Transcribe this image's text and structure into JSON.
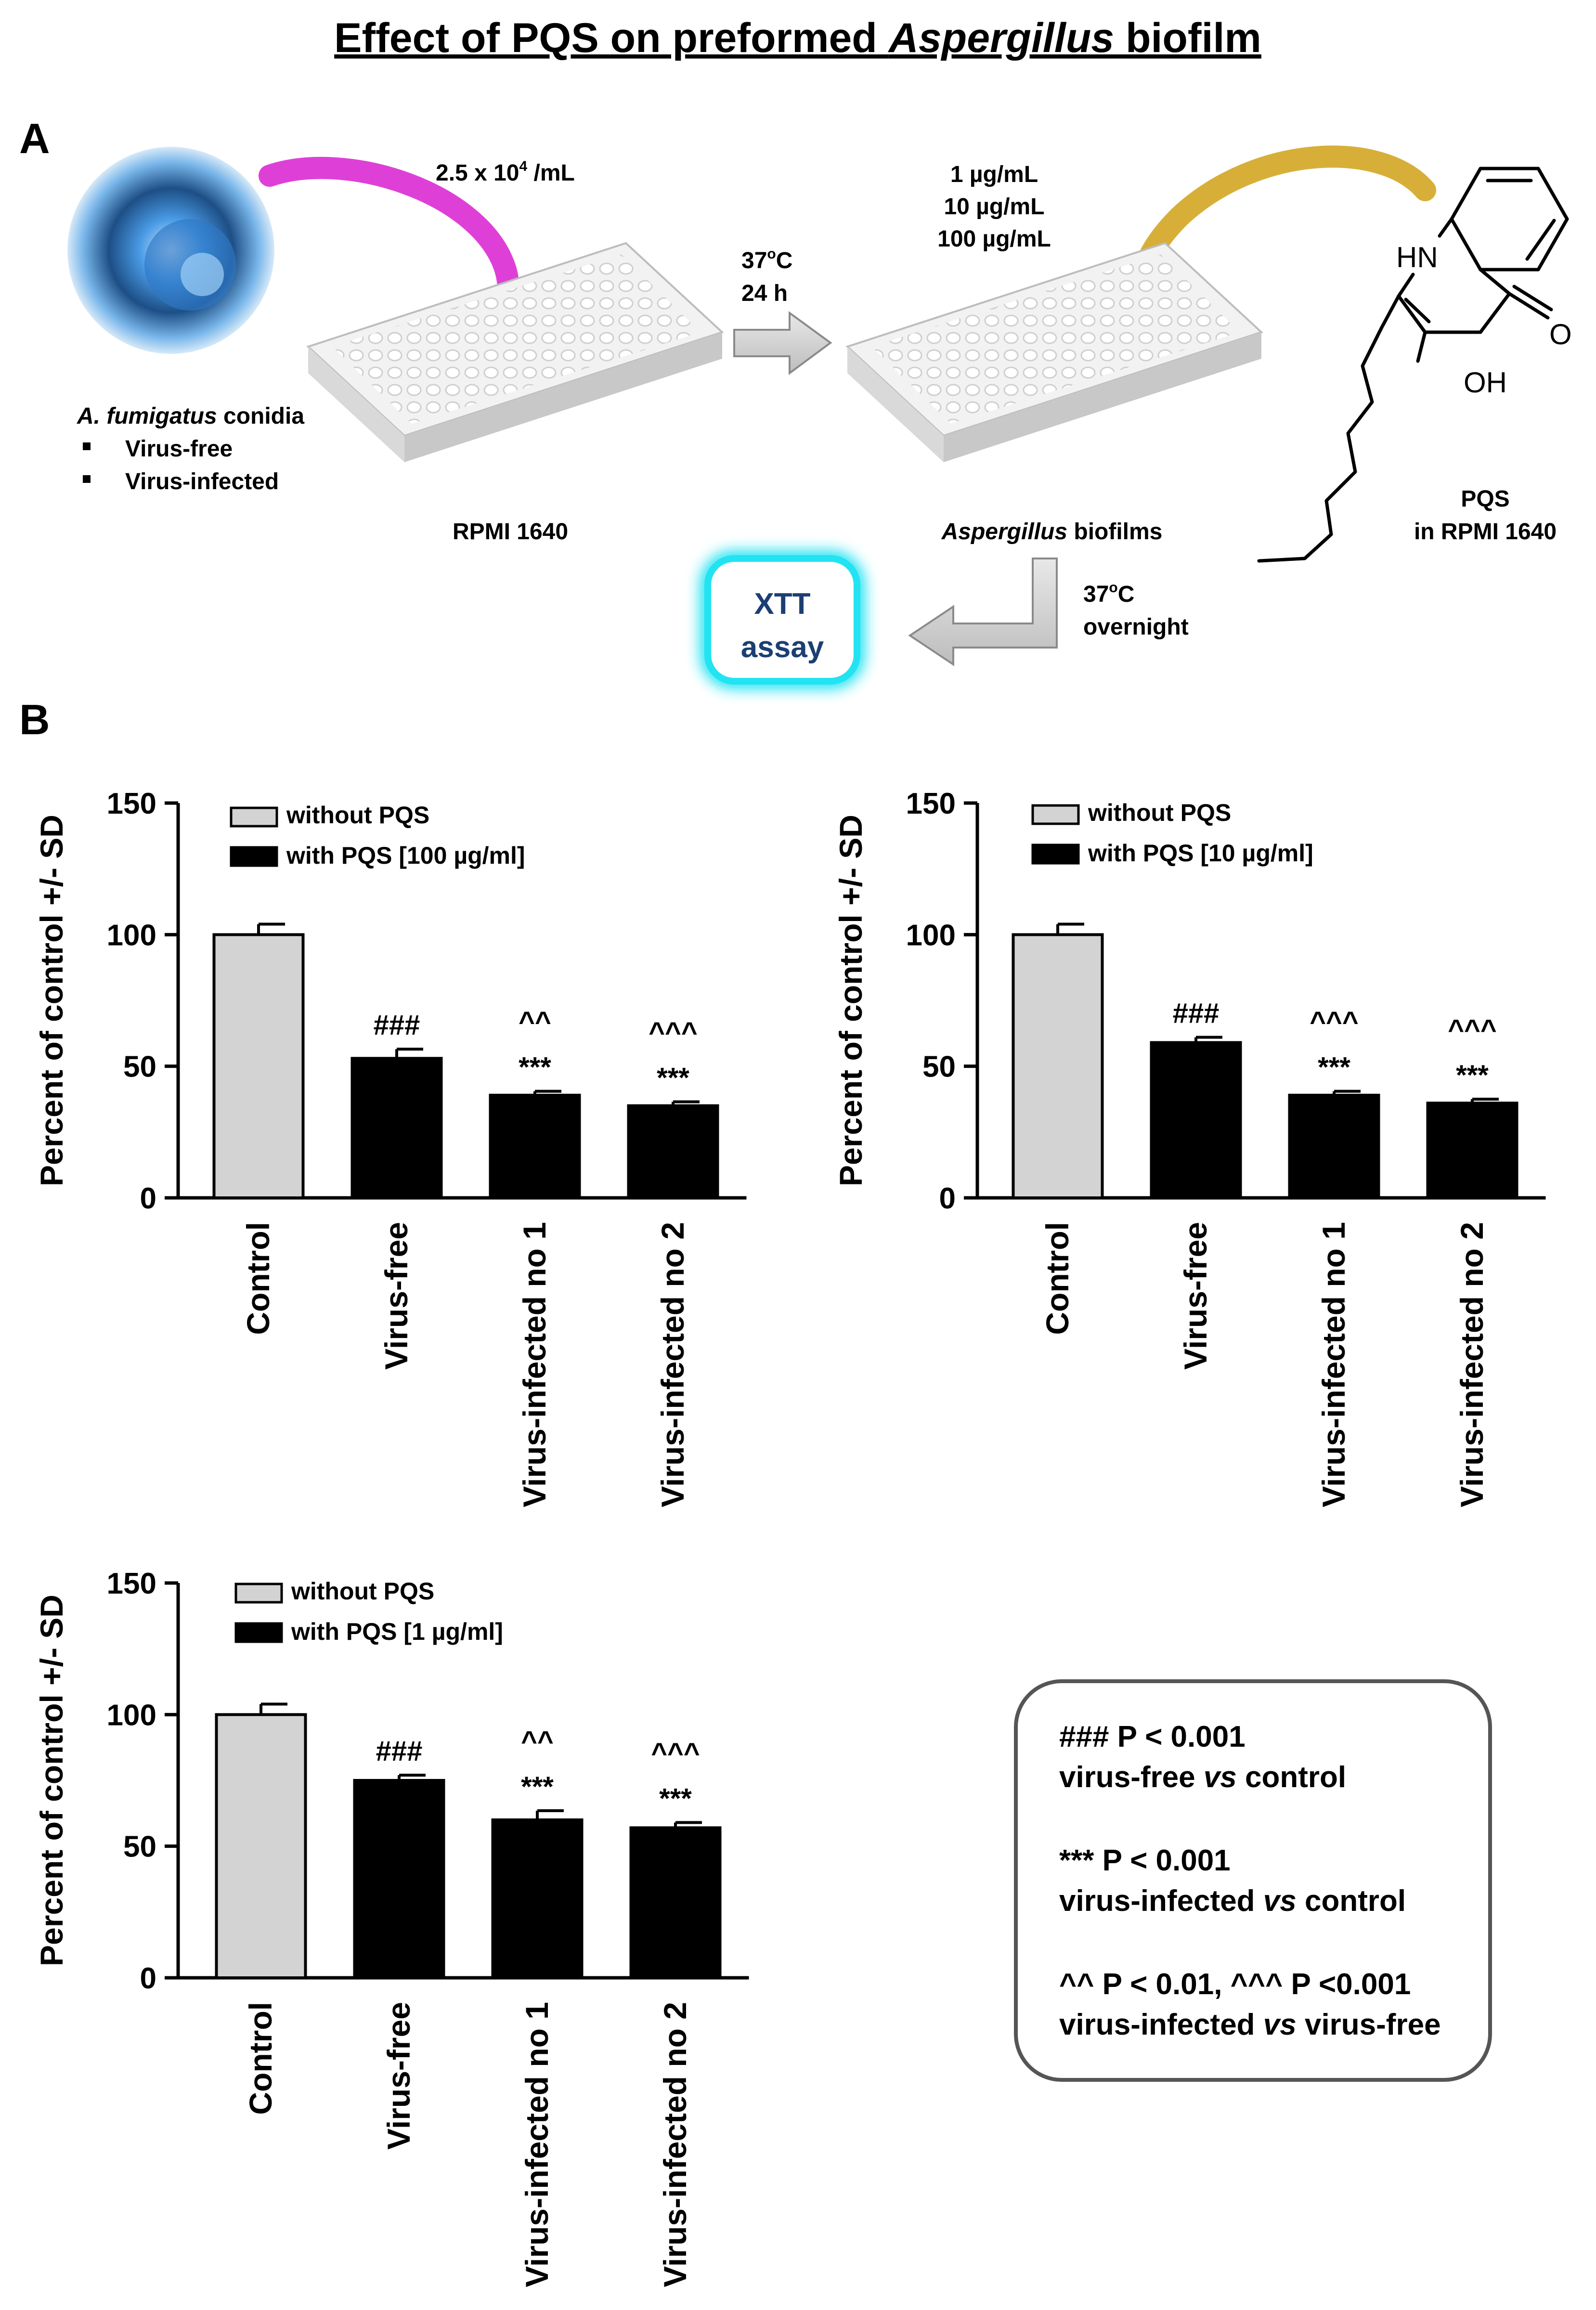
{
  "page": {
    "title_pre": "Effect of PQS on preformed ",
    "title_em": "Aspergillus",
    "title_post": " biofilm"
  },
  "panelA": {
    "label": "A",
    "conc": "2.5 x 10",
    "conc_exp": "4",
    "conc_unit": " /mL",
    "conidia_title_em": "A. fumigatus",
    "conidia_title_rest": " conidia",
    "conidia_items": [
      "Virus-free",
      "Virus-infected"
    ],
    "plate1_label": "RPMI 1640",
    "step1": [
      "37",
      "o",
      "C",
      "24 h"
    ],
    "doses": [
      "1 µg/mL",
      "10 µg/mL",
      "100 µg/mL"
    ],
    "plate2_label_em": "Aspergillus",
    "plate2_label_rest": " biofilms",
    "mol_hn": "HN",
    "mol_o": "O",
    "mol_oh": "OH",
    "pqs_label": [
      "PQS",
      "in RPMI 1640"
    ],
    "step2": [
      "37",
      "o",
      "C",
      "overnight"
    ],
    "xtt": [
      "XTT",
      "assay"
    ],
    "colors": {
      "magenta": "#d81fd0",
      "gold": "#d3a622",
      "xtt_glow": "#22e3f2",
      "xtt_text": "#1c3f73",
      "conidia": "#3f8fd8"
    }
  },
  "panelB": {
    "label": "B"
  },
  "chart_data": [
    {
      "type": "bar",
      "ylabel": "Percent of control +/- SD",
      "ylim": [
        0,
        150
      ],
      "yticks": [
        0,
        50,
        100,
        150
      ],
      "categories": [
        "Control",
        "Virus-free",
        "Virus-infected no 1",
        "Virus-infected no 2"
      ],
      "values": [
        100,
        53,
        39,
        35
      ],
      "errors": [
        4,
        3.5,
        1.5,
        1.5
      ],
      "legend": [
        "without PQS",
        "with PQS [100 µg/ml]"
      ],
      "annotations": [
        [],
        [
          "###"
        ],
        [
          "^^",
          "***"
        ],
        [
          "^^^",
          "***"
        ]
      ],
      "colors": [
        "#d3d3d3",
        "#000000",
        "#000000",
        "#000000"
      ]
    },
    {
      "type": "bar",
      "ylabel": "Percent of control +/- SD",
      "ylim": [
        0,
        150
      ],
      "yticks": [
        0,
        50,
        100,
        150
      ],
      "categories": [
        "Control",
        "Virus-free",
        "Virus-infected no 1",
        "Virus-infected no 2"
      ],
      "values": [
        100,
        59,
        39,
        36
      ],
      "errors": [
        4,
        2,
        1.5,
        1.5
      ],
      "legend": [
        "without PQS",
        "with PQS [10 µg/ml]"
      ],
      "annotations": [
        [],
        [
          "###"
        ],
        [
          "^^^",
          "***"
        ],
        [
          "^^^",
          "***"
        ]
      ],
      "colors": [
        "#d3d3d3",
        "#000000",
        "#000000",
        "#000000"
      ]
    },
    {
      "type": "bar",
      "ylabel": "Percent of control +/- SD",
      "ylim": [
        0,
        150
      ],
      "yticks": [
        0,
        50,
        100,
        150
      ],
      "categories": [
        "Control",
        "Virus-free",
        "Virus-infected no 1",
        "Virus-infected no 2"
      ],
      "values": [
        100,
        75,
        60,
        57
      ],
      "errors": [
        4,
        2,
        3.5,
        2
      ],
      "legend": [
        "without PQS",
        "with PQS [1 µg/ml]"
      ],
      "annotations": [
        [],
        [
          "###"
        ],
        [
          "^^",
          "***"
        ],
        [
          "^^^",
          "***"
        ]
      ],
      "colors": [
        "#d3d3d3",
        "#000000",
        "#000000",
        "#000000"
      ]
    }
  ],
  "stats_box": {
    "lines": [
      [
        "### P < 0.001"
      ],
      [
        "virus-free ",
        "vs",
        " control"
      ],
      [
        "*** P < 0.001"
      ],
      [
        "virus-infected ",
        "vs",
        " control"
      ],
      [
        "^^ P < 0.01, ^^^ P <0.001"
      ],
      [
        "virus-infected ",
        "vs",
        " virus-free"
      ]
    ]
  }
}
